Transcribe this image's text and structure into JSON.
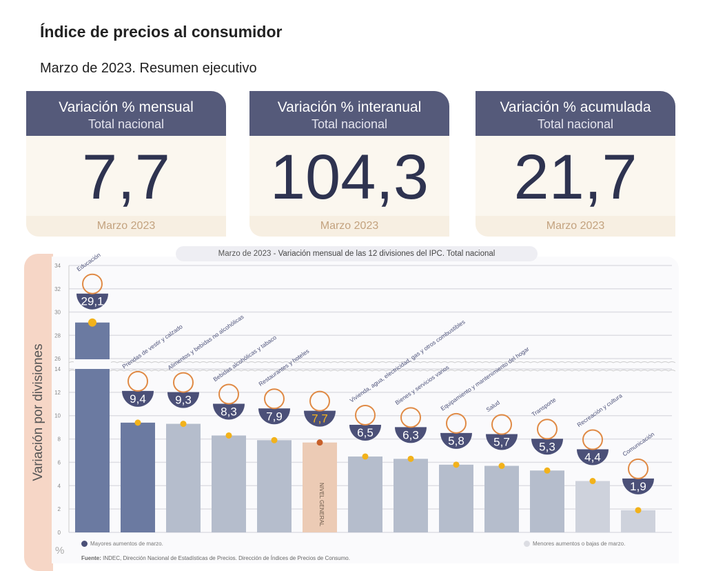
{
  "header": {
    "title": "Índice de precios al consumidor",
    "subtitle": "Marzo de 2023. Resumen ejecutivo"
  },
  "cards": [
    {
      "title": "Variación % mensual",
      "subtitle": "Total nacional",
      "value": "7,7",
      "period": "Marzo 2023"
    },
    {
      "title": "Variación % interanual",
      "subtitle": "Total nacional",
      "value": "104,3",
      "period": "Marzo 2023"
    },
    {
      "title": "Variación % acumulada",
      "subtitle": "Total nacional",
      "value": "21,7",
      "period": "Marzo 2023"
    }
  ],
  "chart_data": {
    "type": "bar",
    "title_prefix": "Marzo de 2023 - ",
    "title": "Variación mensual de las 12 divisiones del IPC. Total nacional",
    "ylabel": "Variación por divisiones",
    "yunit": "%",
    "ylim": [
      0,
      34
    ],
    "axis_break": [
      14,
      26
    ],
    "yticks_lower": [
      0,
      2,
      4,
      6,
      8,
      10,
      12,
      14
    ],
    "yticks_upper": [
      26,
      28,
      30,
      32,
      34
    ],
    "categories": [
      "Educación",
      "Prendas de vestir y calzado",
      "Alimentos y bebidas no alcohólicas",
      "Bebidas alcohólicas y tabaco",
      "Restaurantes y hoteles",
      "Nivel general",
      "Vivienda, agua, electricidad, gas y otros combustibles",
      "Bienes y servicios varios",
      "Equipamiento y mantenimiento del hogar",
      "Salud",
      "Transporte",
      "Recreación y cultura",
      "Comunicación"
    ],
    "values": [
      29.1,
      9.4,
      9.3,
      8.3,
      7.9,
      7.7,
      6.5,
      6.3,
      5.8,
      5.7,
      5.3,
      4.4,
      1.9
    ],
    "value_labels": [
      "29,1",
      "9,4",
      "9,3",
      "8,3",
      "7,9",
      "7,7",
      "6,5",
      "6,3",
      "5,8",
      "5,7",
      "5,3",
      "4,4",
      "1,9"
    ],
    "groups": [
      "mayor",
      "mayor",
      "medio",
      "medio",
      "medio",
      "general",
      "medio",
      "medio",
      "medio",
      "medio",
      "medio",
      "menor",
      "menor"
    ],
    "general_label": "NIVEL GENERAL",
    "colors": {
      "mayor": "#6b7aa1",
      "medio": "#b5bdcc",
      "general": "#eccbb5",
      "menor": "#ced2dc",
      "badge": "#4b5078",
      "marker": "#f2b21b",
      "accent": "#c3a27e"
    },
    "legend": {
      "left": "Mayores aumentos de marzo.",
      "right": "Menores aumentos o bajas de marzo."
    },
    "grid": true
  },
  "source": {
    "label": "Fuente:",
    "text": " INDEC, Dirección Nacional de Estadísticas de Precios. Dirección de Índices de Precios de Consumo."
  }
}
